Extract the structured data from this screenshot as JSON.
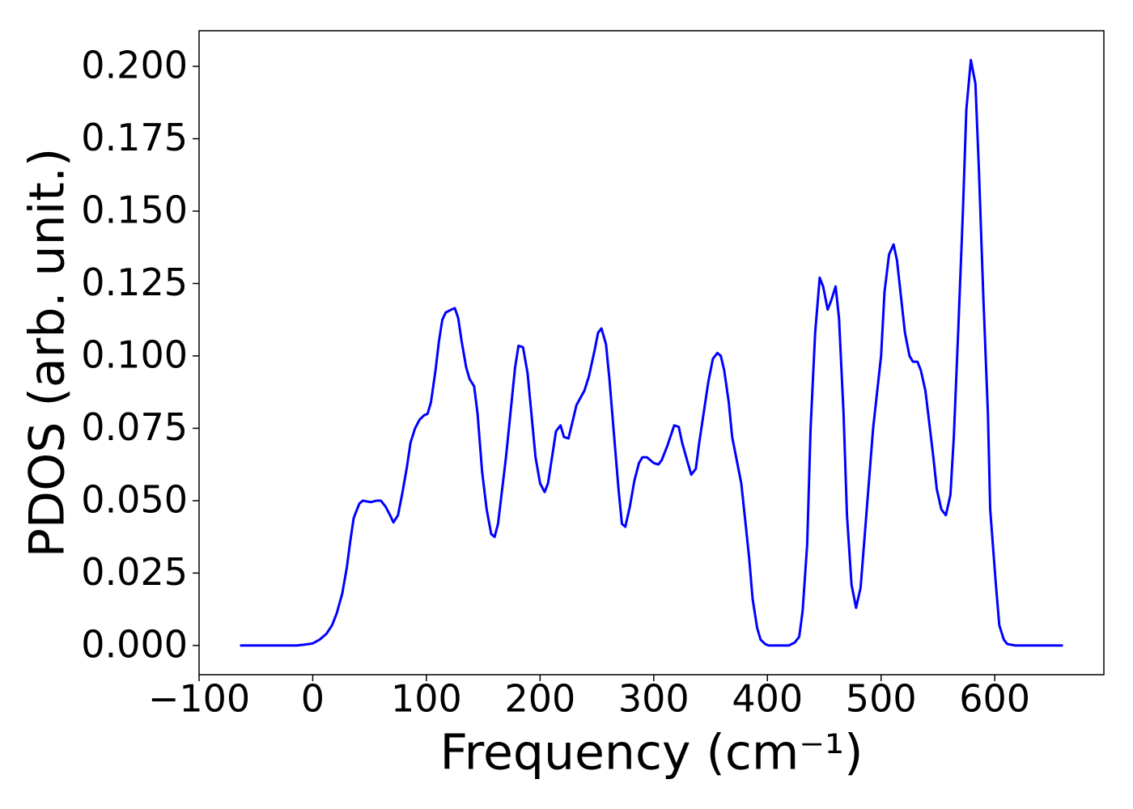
{
  "chart_data": {
    "type": "line",
    "xlabel": "Frequency (cm⁻¹)",
    "ylabel": "PDOS (arb. unit.)",
    "x": [
      -64,
      -14,
      -7,
      0,
      6,
      12,
      17,
      21,
      26,
      30,
      33,
      36,
      41,
      44,
      51,
      56,
      60,
      64,
      68,
      71,
      75,
      79,
      83,
      86,
      90,
      94,
      98,
      101,
      104,
      108,
      111,
      114,
      117,
      122,
      125,
      128,
      131,
      135,
      138,
      142,
      145,
      149,
      153,
      157,
      160,
      163,
      170,
      178,
      181,
      185,
      189,
      196,
      200,
      204,
      207,
      214,
      218,
      221,
      225,
      232,
      239,
      243,
      248,
      251,
      254,
      258,
      261,
      269,
      272,
      275,
      279,
      283,
      287,
      290,
      294,
      300,
      304,
      307,
      312,
      318,
      322,
      325,
      330,
      333,
      337,
      340,
      348,
      352,
      356,
      359,
      362,
      366,
      369,
      373,
      377,
      380,
      384,
      387,
      391,
      394,
      398,
      401,
      419,
      424,
      428,
      431,
      435,
      438,
      442,
      446,
      449,
      453,
      456,
      460,
      463,
      467,
      470,
      474,
      478,
      482,
      485,
      489,
      493,
      500,
      503,
      507,
      511,
      514,
      521,
      525,
      528,
      532,
      535,
      539,
      546,
      549,
      553,
      557,
      561,
      564,
      568,
      572,
      575,
      579,
      583,
      586,
      590,
      594,
      596,
      601,
      604,
      608,
      611,
      618,
      660
    ],
    "series": [
      {
        "name": "PDOS",
        "color": "#0000ff",
        "values": [
          0,
          0,
          0.0003,
          0.0007,
          0.002,
          0.004,
          0.007,
          0.011,
          0.018,
          0.027,
          0.036,
          0.044,
          0.049,
          0.05,
          0.0495,
          0.05,
          0.05,
          0.048,
          0.045,
          0.0425,
          0.045,
          0.053,
          0.062,
          0.07,
          0.075,
          0.078,
          0.0795,
          0.08,
          0.084,
          0.095,
          0.105,
          0.1125,
          0.115,
          0.116,
          0.1165,
          0.113,
          0.105,
          0.096,
          0.092,
          0.0895,
          0.08,
          0.06,
          0.047,
          0.0385,
          0.0375,
          0.042,
          0.065,
          0.096,
          0.1035,
          0.103,
          0.094,
          0.065,
          0.056,
          0.053,
          0.056,
          0.074,
          0.076,
          0.072,
          0.0715,
          0.083,
          0.088,
          0.093,
          0.102,
          0.108,
          0.1095,
          0.104,
          0.092,
          0.054,
          0.042,
          0.041,
          0.048,
          0.057,
          0.063,
          0.065,
          0.065,
          0.063,
          0.0625,
          0.064,
          0.069,
          0.076,
          0.0755,
          0.07,
          0.063,
          0.059,
          0.061,
          0.07,
          0.091,
          0.099,
          0.101,
          0.1,
          0.095,
          0.084,
          0.072,
          0.064,
          0.056,
          0.045,
          0.03,
          0.016,
          0.006,
          0.002,
          0.0005,
          0,
          0,
          0.001,
          0.003,
          0.012,
          0.035,
          0.075,
          0.108,
          0.127,
          0.124,
          0.116,
          0.119,
          0.124,
          0.113,
          0.08,
          0.045,
          0.021,
          0.013,
          0.02,
          0.035,
          0.055,
          0.075,
          0.1,
          0.122,
          0.135,
          0.1385,
          0.133,
          0.108,
          0.1,
          0.098,
          0.098,
          0.095,
          0.088,
          0.065,
          0.054,
          0.047,
          0.045,
          0.052,
          0.072,
          0.11,
          0.15,
          0.185,
          0.2022,
          0.194,
          0.165,
          0.12,
          0.08,
          0.047,
          0.021,
          0.007,
          0.002,
          0.0005,
          0,
          0
        ]
      }
    ],
    "xlim": [
      -100,
      696
    ],
    "ylim": [
      -0.0101,
      0.2123
    ],
    "xticks": [
      {
        "value": -100,
        "label": "−100"
      },
      0,
      100,
      200,
      300,
      400,
      500,
      600
    ],
    "yticks": [
      {
        "value": 0,
        "label": "0.000"
      },
      {
        "value": 0.025,
        "label": "0.025"
      },
      {
        "value": 0.05,
        "label": "0.050"
      },
      {
        "value": 0.075,
        "label": "0.075"
      },
      {
        "value": 0.1,
        "label": "0.100"
      },
      {
        "value": 0.125,
        "label": "0.125"
      },
      {
        "value": 0.15,
        "label": "0.150"
      },
      {
        "value": 0.175,
        "label": "0.175"
      },
      {
        "value": 0.2,
        "label": "0.200"
      }
    ]
  }
}
